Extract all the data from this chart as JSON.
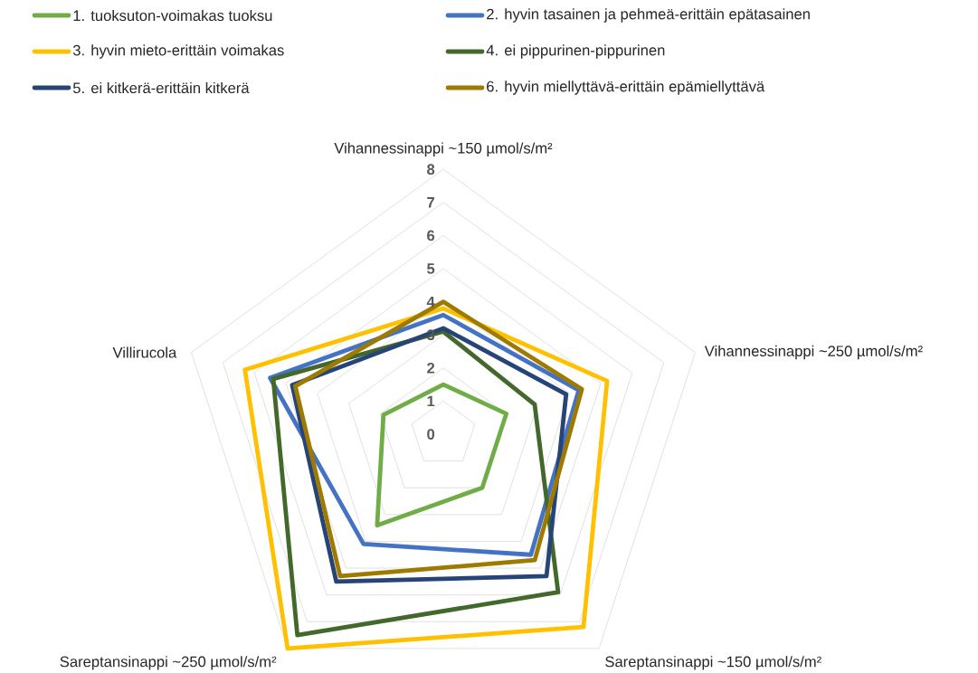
{
  "chart_data": {
    "type": "radar",
    "categories": [
      "Vihannessinappi  ~150 µmol/s/m²",
      "Vihannessinappi  ~250 µmol/s/m²",
      "Sareptansinappi  ~150 µmol/s/m²",
      "Sareptansinappi  ~250 µmol/s/m²",
      "Villirucola"
    ],
    "series": [
      {
        "name": "1. tuoksuton-voimakas tuoksu",
        "color": "#70ad47",
        "values": [
          1.5,
          2.0,
          2.0,
          3.4,
          1.9
        ]
      },
      {
        "name": "2. hyvin tasainen ja pehmeä-erittäin epätasainen",
        "color": "#4472c4",
        "values": [
          3.6,
          4.3,
          4.5,
          4.1,
          5.5
        ]
      },
      {
        "name": "3. hyvin mieto-erittäin voimakas",
        "color": "#ffc000",
        "values": [
          3.8,
          5.2,
          7.2,
          8.0,
          6.3
        ]
      },
      {
        "name": "4. ei pippurinen-pippurinen",
        "color": "#43682b",
        "values": [
          3.1,
          2.9,
          5.9,
          7.5,
          5.4
        ]
      },
      {
        "name": "5. ei kitkerä-erittäin kitkerä",
        "color": "#264478",
        "values": [
          3.2,
          3.9,
          5.3,
          5.5,
          4.8
        ]
      },
      {
        "name": "6. hyvin miellyttävä-erittäin epämiellyttävä",
        "color": "#9e7b00",
        "values": [
          4.0,
          4.4,
          4.7,
          5.3,
          4.7
        ]
      }
    ],
    "ylim": [
      0,
      8
    ],
    "yticks": [
      0,
      1,
      2,
      3,
      4,
      5,
      6,
      7,
      8
    ],
    "grid": true,
    "legend": "top"
  }
}
